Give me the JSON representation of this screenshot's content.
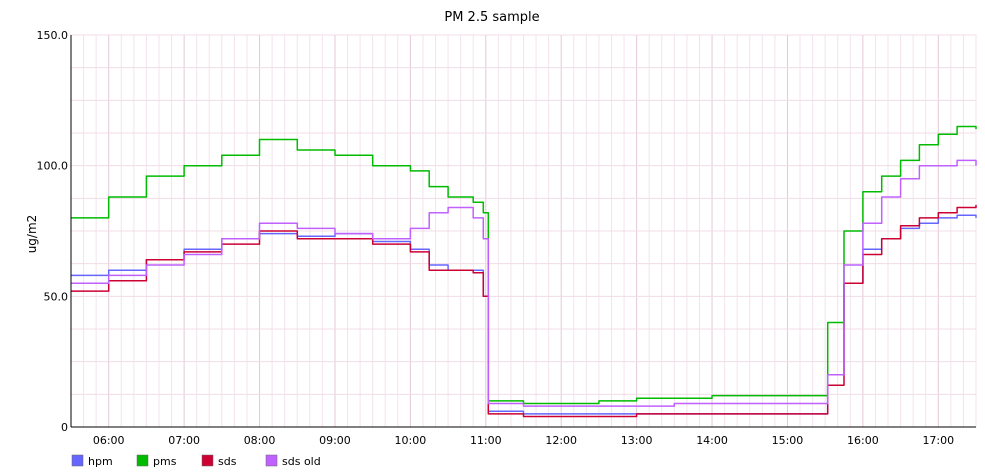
{
  "chart_data": {
    "type": "line",
    "title": "PM 2.5 sample",
    "xlabel": "",
    "ylabel": "ug/m2",
    "xlim": [
      "05:30",
      "17:30"
    ],
    "ylim": [
      0,
      150
    ],
    "y_ticks": [
      "0",
      "50.0",
      "100.0",
      "150.0"
    ],
    "x_ticks": [
      "06:00",
      "07:00",
      "08:00",
      "09:00",
      "10:00",
      "11:00",
      "12:00",
      "13:00",
      "14:00",
      "15:00",
      "16:00",
      "17:00"
    ],
    "grid": true,
    "legend_position": "bottom-left",
    "x": [
      "05:30",
      "06:00",
      "06:30",
      "07:00",
      "07:30",
      "08:00",
      "08:30",
      "09:00",
      "09:30",
      "10:00",
      "10:15",
      "10:30",
      "10:50",
      "10:58",
      "11:02",
      "11:30",
      "12:00",
      "12:30",
      "13:00",
      "13:30",
      "14:00",
      "14:30",
      "15:00",
      "15:25",
      "15:32",
      "15:45",
      "16:00",
      "16:15",
      "16:30",
      "16:45",
      "17:00",
      "17:15",
      "17:30"
    ],
    "series": [
      {
        "name": "hpm",
        "color": "#6666ff",
        "values": [
          58,
          60,
          64,
          68,
          72,
          74,
          73,
          74,
          71,
          68,
          62,
          60,
          60,
          50,
          6,
          5,
          5,
          5,
          5,
          5,
          5,
          5,
          5,
          5,
          20,
          55,
          68,
          72,
          76,
          78,
          80,
          81,
          80
        ]
      },
      {
        "name": "pms",
        "color": "#00bb00",
        "values": [
          80,
          88,
          96,
          100,
          104,
          110,
          106,
          104,
          100,
          98,
          92,
          88,
          86,
          82,
          10,
          9,
          9,
          10,
          11,
          11,
          12,
          12,
          12,
          12,
          40,
          75,
          90,
          96,
          102,
          108,
          112,
          115,
          114
        ]
      },
      {
        "name": "sds",
        "color": "#cc0033",
        "values": [
          52,
          56,
          64,
          67,
          70,
          75,
          72,
          72,
          70,
          67,
          60,
          60,
          59,
          50,
          5,
          4,
          4,
          4,
          5,
          5,
          5,
          5,
          5,
          5,
          16,
          55,
          66,
          72,
          77,
          80,
          82,
          84,
          85
        ]
      },
      {
        "name": "sds old",
        "color": "#c060ff",
        "values": [
          55,
          58,
          62,
          66,
          72,
          78,
          76,
          74,
          72,
          76,
          82,
          84,
          80,
          72,
          9,
          8,
          8,
          8,
          8,
          9,
          9,
          9,
          9,
          9,
          20,
          62,
          78,
          88,
          95,
          100,
          100,
          102,
          100
        ]
      }
    ]
  }
}
